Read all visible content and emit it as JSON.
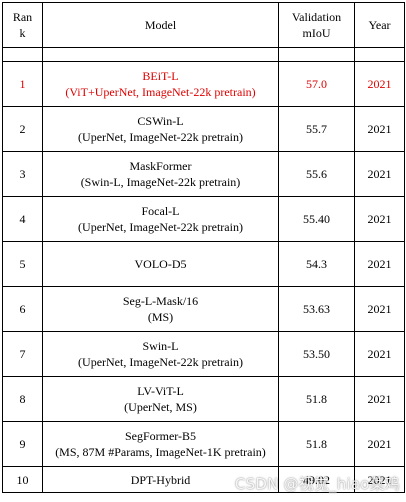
{
  "header": {
    "rank_line1": "Ran",
    "rank_line2": "k",
    "model": "Model",
    "miou_line1": "Validation",
    "miou_line2": "mIoU",
    "year": "Year"
  },
  "rows": [
    {
      "rank": "1",
      "model_line1": "BEiT-L",
      "model_line2": "(ViT+UperNet, ImageNet-22k pretrain)",
      "miou": "57.0",
      "year": "2021",
      "highlight": true
    },
    {
      "rank": "2",
      "model_line1": "CSWin-L",
      "model_line2": "(UperNet, ImageNet-22k pretrain)",
      "miou": "55.7",
      "year": "2021",
      "highlight": false
    },
    {
      "rank": "3",
      "model_line1": "MaskFormer",
      "model_line2": "(Swin-L, ImageNet-22k pretrain)",
      "miou": "55.6",
      "year": "2021",
      "highlight": false
    },
    {
      "rank": "4",
      "model_line1": "Focal-L",
      "model_line2": "(UperNet, ImageNet-22k pretrain)",
      "miou": "55.40",
      "year": "2021",
      "highlight": false
    },
    {
      "rank": "5",
      "model_line1": "VOLO-D5",
      "model_line2": "",
      "miou": "54.3",
      "year": "2021",
      "highlight": false
    },
    {
      "rank": "6",
      "model_line1": "Seg-L-Mask/16",
      "model_line2": "(MS)",
      "miou": "53.63",
      "year": "2021",
      "highlight": false
    },
    {
      "rank": "7",
      "model_line1": "Swin-L",
      "model_line2": "(UperNet, ImageNet-22k pretrain)",
      "miou": "53.50",
      "year": "2021",
      "highlight": false
    },
    {
      "rank": "8",
      "model_line1": "LV-ViT-L",
      "model_line2": "(UperNet, MS)",
      "miou": "51.8",
      "year": "2021",
      "highlight": false
    },
    {
      "rank": "9",
      "model_line1": "SegFormer-B5",
      "model_line2": "(MS, 87M #Params, ImageNet-1K pretrain)",
      "miou": "51.8",
      "year": "2021",
      "highlight": false
    },
    {
      "rank": "10",
      "model_line1": "DPT-Hybrid",
      "model_line2": "",
      "miou": "49.02",
      "year": "2021",
      "highlight": false
    }
  ],
  "watermark": "CSDN @视觉_hiao菜鸡",
  "colors": {
    "highlight": "#e00000",
    "border": "#000000",
    "background": "#ffffff"
  }
}
